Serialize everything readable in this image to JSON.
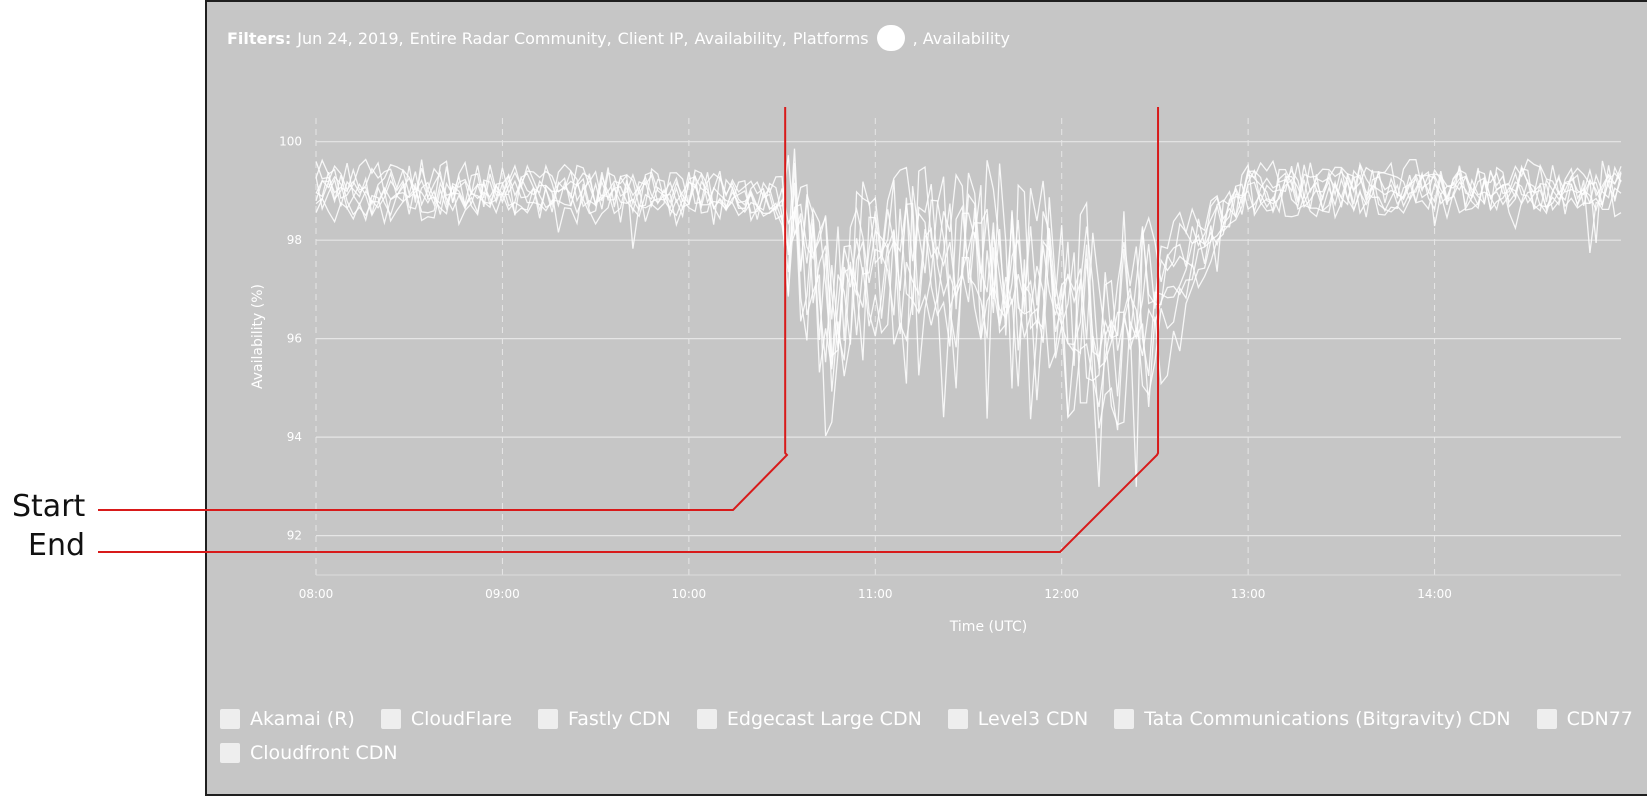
{
  "filters": {
    "label": "Filters:",
    "items": [
      "Jun 24, 2019,",
      "Entire Radar Community,",
      "Client IP,",
      "Availability,",
      "Platforms"
    ],
    "trailing": ", Availability"
  },
  "annotations": {
    "start_label": "Start",
    "end_label": "End",
    "color": "#d81a1a",
    "start_time": "10:31",
    "end_time": "12:31"
  },
  "colors": {
    "panel_bg": "#c6c6c6",
    "line": "#ffffff",
    "grid": "#e6e6e6"
  },
  "chart_data": {
    "type": "line",
    "title": "",
    "xlabel": "Time (UTC)",
    "ylabel": "Availability (%)",
    "x_ticks": [
      "08:00",
      "09:00",
      "10:00",
      "11:00",
      "12:00",
      "13:00",
      "14:00"
    ],
    "y_ticks": [
      92,
      94,
      96,
      98,
      100
    ],
    "xlim": [
      "08:00",
      "15:00"
    ],
    "ylim": [
      91.2,
      100.4
    ],
    "grid": true,
    "legend_position": "bottom",
    "series": [
      {
        "name": "Akamai (R)",
        "x": [
          "08:00",
          "09:00",
          "10:00",
          "10:30",
          "10:45",
          "11:00",
          "11:30",
          "12:00",
          "12:15",
          "12:30",
          "13:00",
          "14:00",
          "15:00"
        ],
        "values": [
          99.2,
          99.0,
          98.9,
          98.8,
          95.2,
          97.5,
          97.6,
          96.5,
          97.0,
          97.8,
          99.0,
          99.0,
          99.1
        ]
      },
      {
        "name": "CloudFlare",
        "x": [
          "08:00",
          "09:00",
          "10:00",
          "10:30",
          "10:45",
          "11:00",
          "11:30",
          "12:00",
          "12:15",
          "12:30",
          "13:00",
          "14:00",
          "15:00"
        ],
        "values": [
          99.0,
          98.9,
          99.0,
          98.7,
          96.0,
          97.0,
          98.0,
          96.0,
          95.8,
          96.5,
          99.2,
          99.1,
          99.0
        ]
      },
      {
        "name": "Fastly CDN",
        "x": [
          "08:00",
          "09:00",
          "10:00",
          "10:30",
          "10:45",
          "11:00",
          "11:30",
          "12:00",
          "12:15",
          "12:30",
          "13:00",
          "14:00",
          "15:00"
        ],
        "values": [
          99.3,
          99.1,
          99.1,
          98.9,
          96.5,
          98.0,
          97.2,
          97.0,
          96.5,
          97.0,
          99.1,
          99.2,
          99.2
        ]
      },
      {
        "name": "Edgecast Large CDN",
        "x": [
          "08:00",
          "09:00",
          "10:00",
          "10:30",
          "10:45",
          "11:00",
          "11:30",
          "12:00",
          "12:15",
          "12:30",
          "13:00",
          "14:00",
          "15:00"
        ],
        "values": [
          98.8,
          98.7,
          98.8,
          98.6,
          96.8,
          97.8,
          98.2,
          97.5,
          96.2,
          97.2,
          98.9,
          98.9,
          98.9
        ]
      },
      {
        "name": "Level3 CDN",
        "x": [
          "08:00",
          "09:00",
          "10:00",
          "10:30",
          "10:45",
          "11:00",
          "11:30",
          "12:00",
          "12:15",
          "12:30",
          "13:00",
          "14:00",
          "15:00"
        ],
        "values": [
          99.1,
          99.2,
          98.9,
          98.8,
          97.0,
          96.5,
          98.5,
          96.8,
          95.5,
          96.0,
          99.0,
          99.0,
          99.1
        ]
      },
      {
        "name": "Tata Communications (Bitgravity) CDN",
        "x": [
          "08:00",
          "09:00",
          "10:00",
          "10:30",
          "10:45",
          "11:00",
          "11:30",
          "12:00",
          "12:15",
          "12:30",
          "13:00",
          "14:00",
          "15:00"
        ],
        "values": [
          99.0,
          98.8,
          99.0,
          98.9,
          97.2,
          97.8,
          97.8,
          97.8,
          97.0,
          96.5,
          99.1,
          98.9,
          99.0
        ]
      },
      {
        "name": "CDN77",
        "x": [
          "08:00",
          "09:00",
          "10:00",
          "10:30",
          "10:45",
          "11:00",
          "11:30",
          "12:00",
          "12:15",
          "12:30",
          "13:00",
          "14:00",
          "15:00"
        ],
        "values": [
          99.2,
          99.0,
          99.1,
          98.9,
          96.0,
          97.2,
          97.5,
          96.8,
          96.0,
          95.0,
          99.3,
          99.1,
          99.0
        ]
      },
      {
        "name": "Cloudfront CDN",
        "x": [
          "08:00",
          "09:00",
          "10:00",
          "10:30",
          "10:45",
          "11:00",
          "11:30",
          "12:00",
          "12:15",
          "12:30",
          "13:00",
          "14:00",
          "15:00"
        ],
        "values": [
          98.9,
          99.0,
          98.9,
          98.8,
          96.5,
          98.2,
          97.8,
          97.2,
          96.8,
          97.5,
          99.0,
          99.1,
          99.1
        ]
      }
    ]
  }
}
